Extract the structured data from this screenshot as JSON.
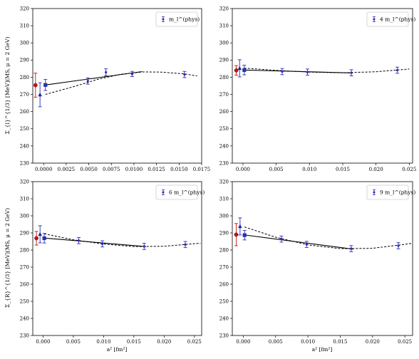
{
  "figure": {
    "ylabel_top": "Σ_{l}^{1/3} [MeV](MS, μ = 2 GeV)",
    "ylabel_bottom": "Σ_{R}^{1/3} [MeV](MS, μ = 2 GeV)",
    "xlabel": "a² [fm²]"
  },
  "colors": {
    "data": "#2b2bb8",
    "continuum_red": "#cc1111",
    "triangle": "#1a2a9a",
    "square": "#2233aa",
    "fit": "#000000"
  },
  "chart_data": [
    {
      "type": "scatter",
      "title": "",
      "legend": "m_l^(phys)",
      "legend_placement": "top-right",
      "xlim": [
        -0.0012,
        0.0175
      ],
      "ylim": [
        230,
        320
      ],
      "xticks": [
        "0.0000",
        "0.0025",
        "0.0050",
        "0.0075",
        "0.0100",
        "0.0125",
        "0.0150",
        "0.0175"
      ],
      "xtick_values": [
        0,
        0.0025,
        0.005,
        0.0075,
        0.01,
        0.0125,
        0.015,
        0.0175
      ],
      "yticks": [
        "230",
        "240",
        "250",
        "260",
        "270",
        "280",
        "290",
        "300",
        "310",
        "320"
      ],
      "points": [
        {
          "x": 0.0049,
          "y": 277.8,
          "err": 1.8
        },
        {
          "x": 0.0069,
          "y": 282.9,
          "err": 2.0
        },
        {
          "x": 0.0098,
          "y": 281.9,
          "err": 1.5
        },
        {
          "x": 0.0156,
          "y": 281.6,
          "err": 1.8
        }
      ],
      "continuum": {
        "x": -0.0009,
        "y": 275.4,
        "err": 7.0
      },
      "triangle": {
        "x": -0.0004,
        "y": 269.8,
        "err": 7.0
      },
      "square": {
        "x": 0.0002,
        "y": 275.5,
        "err": 3.2
      },
      "solid_fit": [
        [
          0.0002,
          275.5
        ],
        [
          0.0109,
          283.3
        ]
      ],
      "dashed_fit": [
        [
          0.0002,
          270.0
        ],
        [
          0.0035,
          274.8
        ],
        [
          0.006,
          278.8
        ],
        [
          0.0085,
          281.7
        ],
        [
          0.011,
          283.1
        ],
        [
          0.013,
          283.0
        ],
        [
          0.0155,
          282.0
        ],
        [
          0.017,
          280.8
        ]
      ]
    },
    {
      "type": "scatter",
      "title": "",
      "legend": "4 m_l^(phys)",
      "legend_placement": "top-right",
      "xlim": [
        -0.0016,
        0.0255
      ],
      "ylim": [
        230,
        320
      ],
      "xticks": [
        "0.000",
        "0.005",
        "0.010",
        "0.015",
        "0.020",
        "0.025"
      ],
      "xtick_values": [
        0,
        0.005,
        0.01,
        0.015,
        0.02,
        0.025
      ],
      "yticks": [
        "230",
        "240",
        "250",
        "260",
        "270",
        "280",
        "290",
        "300",
        "310",
        "320"
      ],
      "points": [
        {
          "x": 0.0059,
          "y": 283.3,
          "err": 1.8
        },
        {
          "x": 0.0097,
          "y": 283.0,
          "err": 1.8
        },
        {
          "x": 0.0163,
          "y": 282.6,
          "err": 1.8
        },
        {
          "x": 0.0232,
          "y": 284.1,
          "err": 1.8
        }
      ],
      "continuum": {
        "x": -0.001,
        "y": 284.0,
        "err": 2.8
      },
      "triangle": {
        "x": -0.0005,
        "y": 285.2,
        "err": 5.0
      },
      "square": {
        "x": 0.0002,
        "y": 284.2,
        "err": 2.8
      },
      "solid_fit": [
        [
          0.0002,
          284.2
        ],
        [
          0.0165,
          282.5
        ]
      ],
      "dashed_fit": [
        [
          0.0002,
          285.3
        ],
        [
          0.005,
          284.0
        ],
        [
          0.01,
          283.0
        ],
        [
          0.015,
          282.6
        ],
        [
          0.02,
          283.2
        ],
        [
          0.025,
          284.8
        ]
      ]
    },
    {
      "type": "scatter",
      "title": "",
      "legend": "6 m_l^(phys)",
      "legend_placement": "top-right",
      "xlim": [
        -0.0017,
        0.0262
      ],
      "ylim": [
        230,
        320
      ],
      "xticks": [
        "0.000",
        "0.005",
        "0.010",
        "0.015",
        "0.020",
        "0.025"
      ],
      "xtick_values": [
        0,
        0.005,
        0.01,
        0.015,
        0.02,
        0.025
      ],
      "yticks": [
        "230",
        "240",
        "250",
        "260",
        "270",
        "280",
        "290",
        "300",
        "310",
        "320"
      ],
      "points": [
        {
          "x": 0.0059,
          "y": 285.5,
          "err": 1.8
        },
        {
          "x": 0.0098,
          "y": 283.6,
          "err": 1.8
        },
        {
          "x": 0.0167,
          "y": 282.1,
          "err": 1.8
        },
        {
          "x": 0.0235,
          "y": 283.2,
          "err": 1.8
        }
      ],
      "continuum": {
        "x": -0.0011,
        "y": 286.9,
        "err": 4.0
      },
      "triangle": {
        "x": -0.0005,
        "y": 289.2,
        "err": 5.0
      },
      "square": {
        "x": 0.0002,
        "y": 286.9,
        "err": 2.8
      },
      "solid_fit": [
        [
          0.0002,
          287.0
        ],
        [
          0.017,
          282.0
        ]
      ],
      "dashed_fit": [
        [
          0.0002,
          289.5
        ],
        [
          0.005,
          286.0
        ],
        [
          0.01,
          283.5
        ],
        [
          0.015,
          282.0
        ],
        [
          0.02,
          282.2
        ],
        [
          0.026,
          284.0
        ]
      ]
    },
    {
      "type": "scatter",
      "title": "",
      "legend": "9 m_l^(phys)",
      "legend_placement": "top-right",
      "xlim": [
        -0.0017,
        0.0262
      ],
      "ylim": [
        230,
        320
      ],
      "xticks": [
        "0.000",
        "0.005",
        "0.010",
        "0.015",
        "0.020",
        "0.025"
      ],
      "xtick_values": [
        0,
        0.005,
        0.01,
        0.015,
        0.02,
        0.025
      ],
      "yticks": [
        "230",
        "240",
        "250",
        "260",
        "270",
        "280",
        "290",
        "300",
        "310",
        "320"
      ],
      "points": [
        {
          "x": 0.0059,
          "y": 286.4,
          "err": 1.8
        },
        {
          "x": 0.0098,
          "y": 283.3,
          "err": 1.8
        },
        {
          "x": 0.0167,
          "y": 280.8,
          "err": 1.8
        },
        {
          "x": 0.024,
          "y": 282.5,
          "err": 1.8
        }
      ],
      "continuum": {
        "x": -0.0011,
        "y": 289.0,
        "err": 6.5
      },
      "triangle": {
        "x": -0.0005,
        "y": 293.8,
        "err": 5.0
      },
      "square": {
        "x": 0.0002,
        "y": 288.7,
        "err": 2.8
      },
      "solid_fit": [
        [
          0.0002,
          288.8
        ],
        [
          0.017,
          280.5
        ]
      ],
      "dashed_fit": [
        [
          0.0002,
          293.5
        ],
        [
          0.005,
          287.5
        ],
        [
          0.01,
          283.0
        ],
        [
          0.015,
          280.8
        ],
        [
          0.02,
          281.0
        ],
        [
          0.026,
          283.8
        ]
      ]
    }
  ]
}
